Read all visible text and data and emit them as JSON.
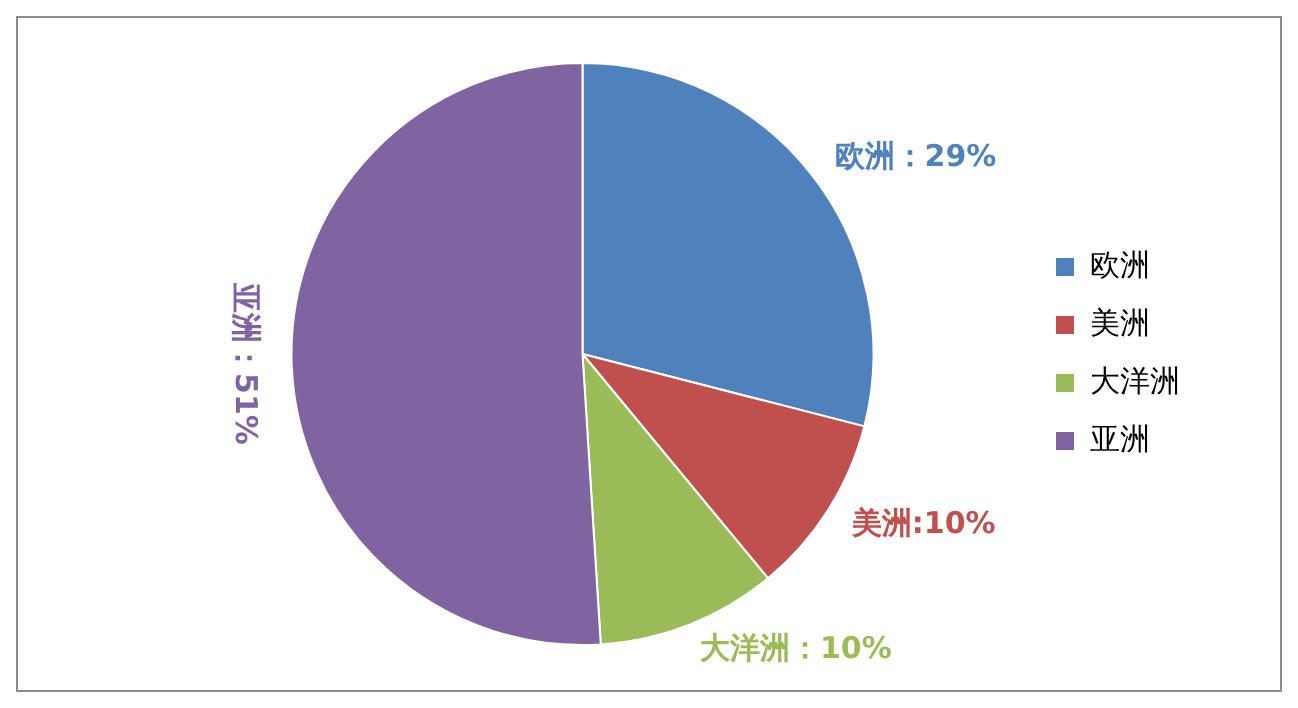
{
  "chart_data": {
    "type": "pie",
    "categories": [
      "欧洲",
      "美洲",
      "大洋洲",
      "亚洲"
    ],
    "values": [
      29,
      10,
      10,
      51
    ],
    "colors": [
      "#4f81bd",
      "#c0504d",
      "#9bbb59",
      "#8064a2"
    ],
    "value_labels": [
      "欧洲：29%",
      "美洲:10%",
      "大洋洲：10%",
      "亚洲：51%"
    ],
    "legend": "right"
  }
}
